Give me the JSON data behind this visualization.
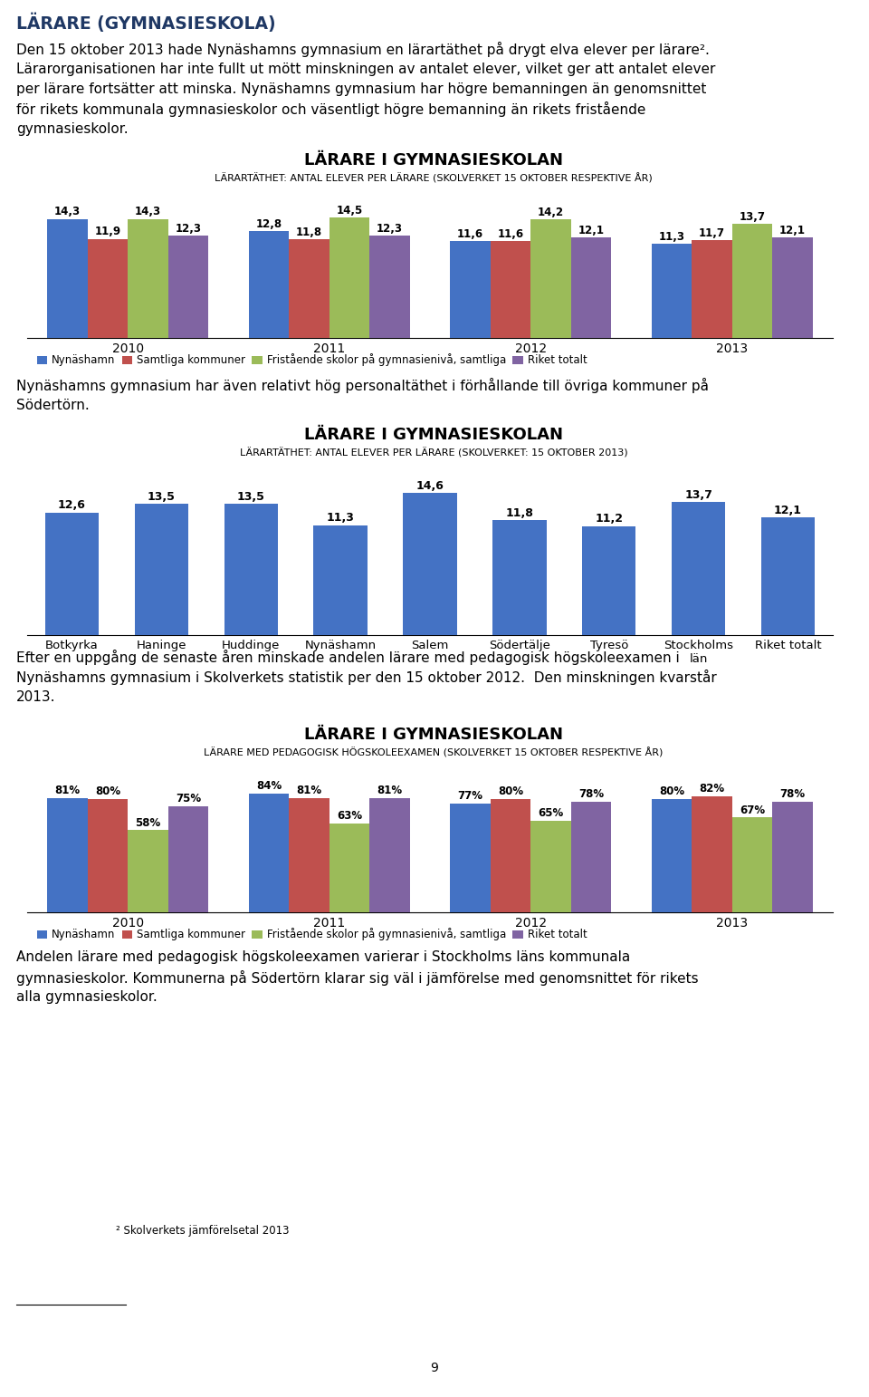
{
  "title_main": "LÄRARE (GYMNASIESKOLA)",
  "intro_line1": "Den 15 oktober 2013 hade Nynäshamns gymnasium en lärartäthet på drygt elva elever per lärare².",
  "intro_line2": "Lärarorganisationen har inte fullt ut mött minskningen av antalet elever, vilket ger att antalet elever",
  "intro_line3": "per lärare fortsätter att minska. Nynäshamns gymnasium har högre bemanningen än genomsnittet",
  "intro_line4": "för rikets kommunala gymnasieskolor och väsentligt högre bemanning än rikets fristående",
  "intro_line5": "gymnasieskolor.",
  "chart1": {
    "title": "LÄRARE I GYMNASIESKOLAN",
    "subtitle": "LÄRARTÄTHET: ANTAL ELEVER PER LÄRARE (SKOLVERKET 15 OKTOBER RESPEKTIVE ÅR)",
    "years": [
      "2010",
      "2011",
      "2012",
      "2013"
    ],
    "series": {
      "Nynäshamn": [
        14.3,
        12.8,
        11.6,
        11.3
      ],
      "Samtliga kommuner": [
        11.9,
        11.8,
        11.6,
        11.7
      ],
      "Fristående skolor på gymnasienivå, samtliga": [
        14.3,
        14.5,
        14.2,
        13.7
      ],
      "Riket totalt": [
        12.3,
        12.3,
        12.1,
        12.1
      ]
    },
    "colors": {
      "Nynäshamn": "#4472C4",
      "Samtliga kommuner": "#C0504D",
      "Fristående skolor på gymnasienivå, samtliga": "#9BBB59",
      "Riket totalt": "#8064A2"
    }
  },
  "middle_line1": "Nynäshamns gymnasium har även relativt hög personaltäthet i förhållande till övriga kommuner på",
  "middle_line2": "Södertörn.",
  "chart2": {
    "title": "LÄRARE I GYMNASIESKOLAN",
    "subtitle": "LÄRARTÄTHET: ANTAL ELEVER PER LÄRARE (SKOLVERKET: 15 OKTOBER 2013)",
    "categories": [
      "Botkyrka",
      "Haninge",
      "Huddinge",
      "Nynäshamn",
      "Salem",
      "Södertälje",
      "Tyresö",
      "Stockholms\nlän",
      "Riket totalt"
    ],
    "values": [
      12.6,
      13.5,
      13.5,
      11.3,
      14.6,
      11.8,
      11.2,
      13.7,
      12.1
    ],
    "color": "#4472C4"
  },
  "text2_line1": "Efter en uppgång de senaste åren minskade andelen lärare med pedagogisk högskoleexamen i",
  "text2_line2": "Nynäshamns gymnasium i Skolverkets statistik per den 15 oktober 2012.  Den minskningen kvarstår",
  "text2_line3": "2013.",
  "chart3": {
    "title": "LÄRARE I GYMNASIESKOLAN",
    "subtitle": "LÄRARE MED PEDAGOGISK HÖGSKOLEEXAMEN (SKOLVERKET 15 OKTOBER RESPEKTIVE ÅR)",
    "years": [
      "2010",
      "2011",
      "2012",
      "2013"
    ],
    "series": {
      "Nynäshamn": [
        81,
        84,
        77,
        80
      ],
      "Samtliga kommuner": [
        80,
        81,
        80,
        82
      ],
      "Fristående skolor på gymnasienivå, samtliga": [
        58,
        63,
        65,
        67
      ],
      "Riket totalt": [
        75,
        81,
        78,
        78
      ]
    },
    "colors": {
      "Nynäshamn": "#4472C4",
      "Samtliga kommuner": "#C0504D",
      "Fristående skolor på gymnasienivå, samtliga": "#9BBB59",
      "Riket totalt": "#8064A2"
    }
  },
  "text3_line1": "Andelen lärare med pedagogisk högskoleexamen varierar i Stockholms läns kommunala",
  "text3_line2": "gymnasieskolor. Kommunerna på Södertörn klarar sig väl i jämförelse med genomsnittet för rikets",
  "text3_line3": "alla gymnasieskolor.",
  "footer": "² Skolverkets jämförelsetal 2013",
  "page_number": "9",
  "title_color": "#1F3864",
  "text_fontsize": 11.0,
  "title_fontsize": 13.5,
  "chart_title_fontsize": 13.0,
  "chart_sub_fontsize": 8.0,
  "bar_label_fontsize": 8.5,
  "legend_fontsize": 8.5,
  "axis_fontsize": 10.0
}
